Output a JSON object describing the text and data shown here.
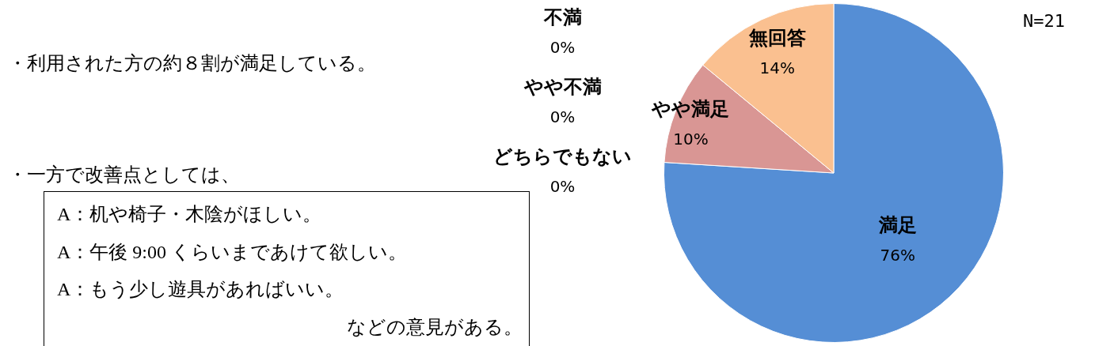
{
  "chart_data": {
    "type": "pie",
    "categories": [
      "満足",
      "不満",
      "やや不満",
      "どちらでもない",
      "やや満足",
      "無回答"
    ],
    "values": [
      76,
      0,
      0,
      0,
      10,
      14
    ],
    "value_labels": [
      "76%",
      "0%",
      "0%",
      "0%",
      "10%",
      "14%"
    ],
    "colors": [
      "#558ed5",
      "#9bbb59",
      "#8064a2",
      "#4bacc6",
      "#d99694",
      "#fac090"
    ],
    "legend": false,
    "annotations": [
      "・利用された方の約８割が満足している。",
      "・一方で改善点としては、",
      "A：机や椅子・木陰がほしい。",
      "A：午後 9:00 くらいまであけて欲しい。",
      "A：もう少し遊具があればいい。",
      "などの意見がある。",
      "N=21"
    ]
  }
}
